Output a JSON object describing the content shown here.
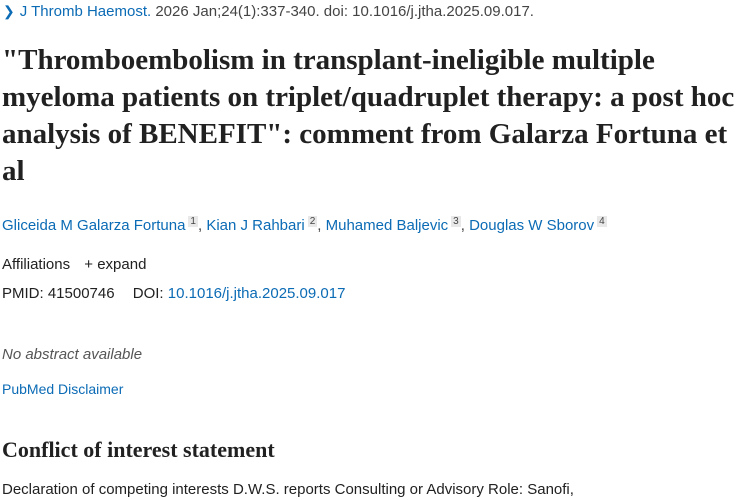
{
  "citation": {
    "journal": "J Thromb Haemost.",
    "details": "2026 Jan;24(1):337-340. doi: 10.1016/j.jtha.2025.09.017."
  },
  "title": "\"Thromboembolism in transplant-ineligible multiple myeloma patients on triplet/quadruplet therapy: a post hoc analysis of BENEFIT\": comment from Galarza Fortuna et al",
  "authors": [
    {
      "name": "Gliceida M Galarza Fortuna",
      "aff": "1"
    },
    {
      "name": "Kian J Rahbari",
      "aff": "2"
    },
    {
      "name": "Muhamed Baljevic",
      "aff": "3"
    },
    {
      "name": "Douglas W Sborov",
      "aff": "4"
    }
  ],
  "affiliations": {
    "label": "Affiliations",
    "expand": "expand"
  },
  "ids": {
    "pmid_label": "PMID:",
    "pmid": "41500746",
    "doi_label": "DOI:",
    "doi": "10.1016/j.jtha.2025.09.017"
  },
  "no_abstract": "No abstract available",
  "disclaimer": "PubMed Disclaimer",
  "coi": {
    "heading": "Conflict of interest statement",
    "text": "Declaration of competing interests D.W.S. reports Consulting or Advisory Role: Sanofi,"
  }
}
